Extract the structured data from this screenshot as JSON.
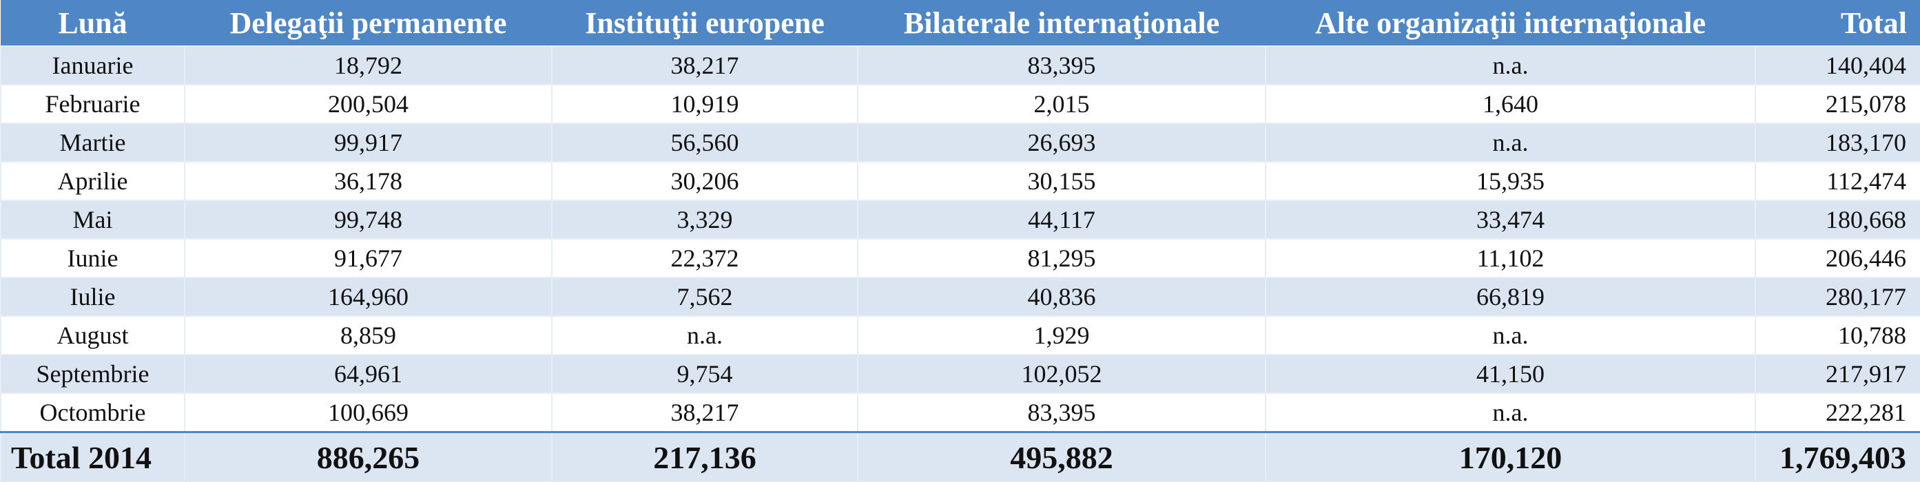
{
  "table": {
    "header": [
      "Lună",
      "Delegaţii permanente",
      "Instituţii europene",
      "Bilaterale internaţionale",
      "Alte organizaţii internaţionale",
      "Total"
    ],
    "rows": [
      [
        "Ianuarie",
        "18,792",
        "38,217",
        "83,395",
        "n.a.",
        "140,404"
      ],
      [
        "Februarie",
        "200,504",
        "10,919",
        "2,015",
        "1,640",
        "215,078"
      ],
      [
        "Martie",
        "99,917",
        "56,560",
        "26,693",
        "n.a.",
        "183,170"
      ],
      [
        "Aprilie",
        "36,178",
        "30,206",
        "30,155",
        "15,935",
        "112,474"
      ],
      [
        "Mai",
        "99,748",
        "3,329",
        "44,117",
        "33,474",
        "180,668"
      ],
      [
        "Iunie",
        "91,677",
        "22,372",
        "81,295",
        "11,102",
        "206,446"
      ],
      [
        "Iulie",
        "164,960",
        "7,562",
        "40,836",
        "66,819",
        "280,177"
      ],
      [
        "August",
        "8,859",
        "n.a.",
        "1,929",
        "n.a.",
        "10,788"
      ],
      [
        "Septembrie",
        "64,961",
        "9,754",
        "102,052",
        "41,150",
        "217,917"
      ],
      [
        "Octombrie",
        "100,669",
        "38,217",
        "83,395",
        "n.a.",
        "222,281"
      ]
    ],
    "total": [
      "Total 2014",
      "886,265",
      "217,136",
      "495,882",
      "170,120",
      "1,769,403"
    ]
  }
}
